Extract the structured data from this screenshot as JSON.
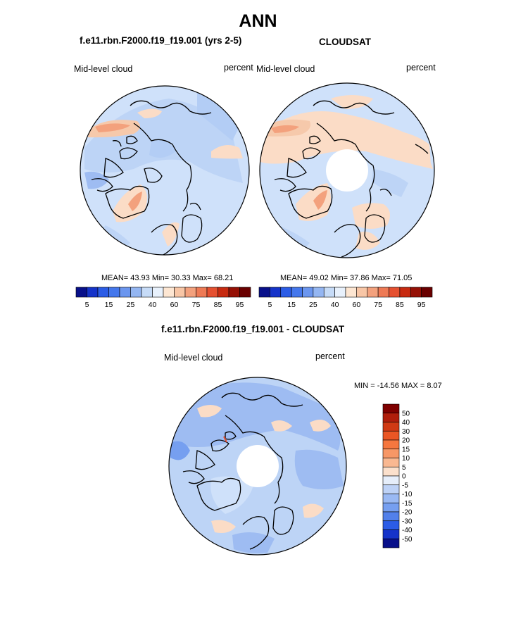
{
  "title": "ANN",
  "panels": [
    {
      "title": "f.e11.rbn.F2000.f19_f19.001 (yrs 2-5)",
      "left_label": "Mid-level cloud",
      "right_label": "percent",
      "stats": "MEAN=  43.93  Min=  30.33  Max=  68.21"
    },
    {
      "title": "CLOUDSAT",
      "left_label": "Mid-level cloud",
      "right_label": "percent",
      "stats": "MEAN=  49.02  Min=  37.86  Max=  71.05"
    },
    {
      "title": "f.e11.rbn.F2000.f19_f19.001 - CLOUDSAT",
      "left_label": "Mid-level cloud",
      "right_label": "percent",
      "stats": "MIN = -14.56 MAX =   8.07"
    }
  ],
  "colorbar_horizontal": {
    "tick_labels": [
      "5",
      "15",
      "25",
      "40",
      "60",
      "75",
      "85",
      "95"
    ],
    "colors": [
      "#08108a",
      "#1533c9",
      "#2b5ce6",
      "#4477ec",
      "#6b96ef",
      "#94b6f2",
      "#c6dbf7",
      "#e8f1fc",
      "#fde6d2",
      "#f8c6a6",
      "#f3a17d",
      "#ee7a55",
      "#e55030",
      "#c72a10",
      "#951005",
      "#6a0000"
    ]
  },
  "colorbar_vertical": {
    "tick_labels": [
      "50",
      "40",
      "30",
      "20",
      "15",
      "10",
      "5",
      "0",
      "-5",
      "-10",
      "-15",
      "-20",
      "-30",
      "-40",
      "-50"
    ],
    "colors": [
      "#7f0000",
      "#b01e0c",
      "#d03a14",
      "#ea5624",
      "#f5773f",
      "#f79766",
      "#f9b891",
      "#fbe0cc",
      "#e6eefa",
      "#bed2f6",
      "#9ab9f3",
      "#769ff0",
      "#5280ea",
      "#2b5ce6",
      "#1533c9",
      "#08108a"
    ]
  },
  "map_colors": {
    "coast": "#000000",
    "ocean_base": "#cfe1fa",
    "light_blue": "#bdd4f6",
    "mid_blue": "#9ebcf2",
    "peach": "#fbdcc6",
    "salmon": "#f3a17d",
    "white": "#ffffff"
  }
}
